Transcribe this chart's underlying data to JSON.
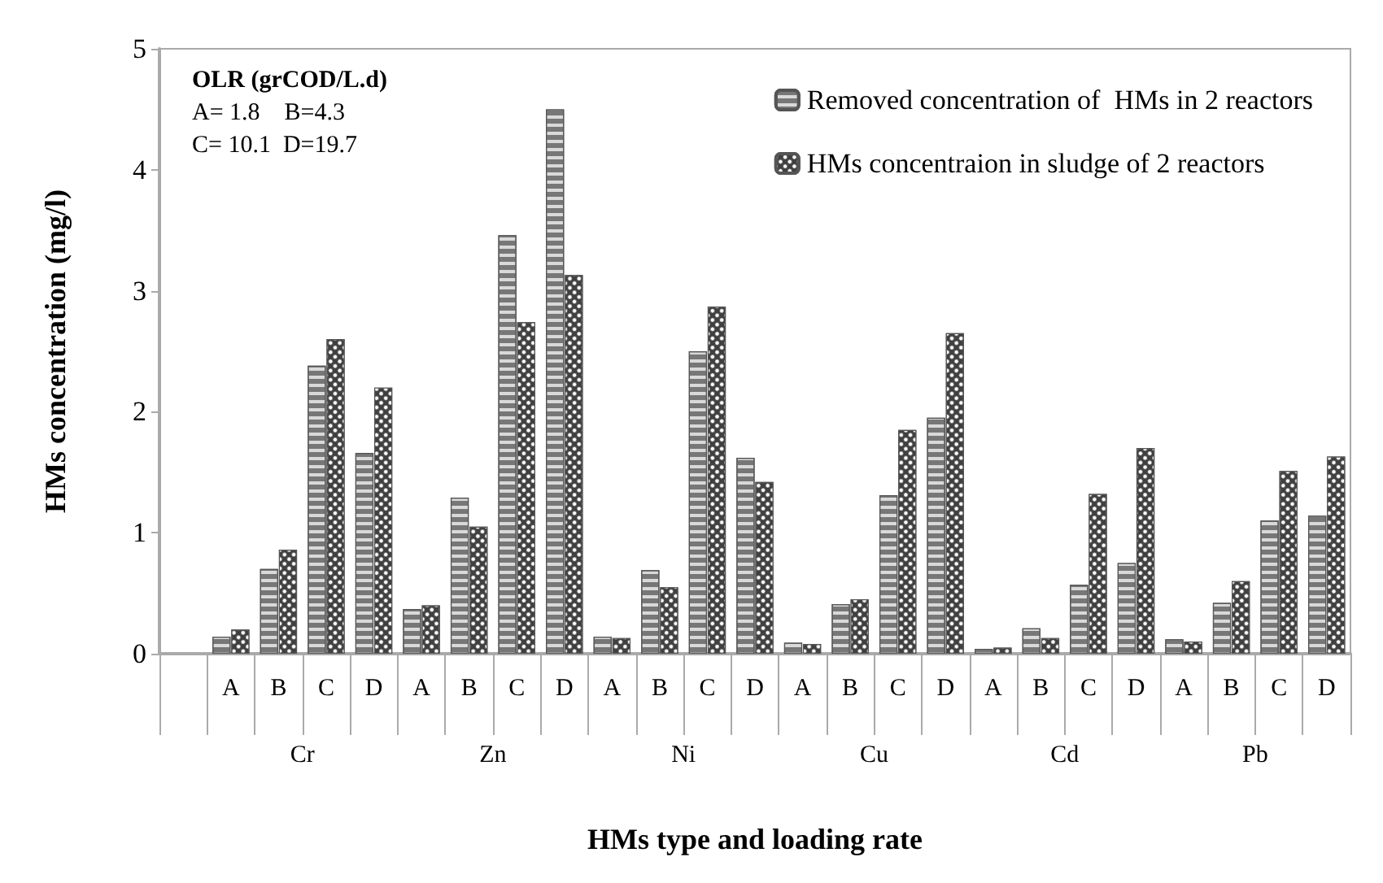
{
  "chart_data": {
    "type": "bar",
    "xlabel": "HMs type and loading rate",
    "ylabel": "HMs concentration (mg/l)",
    "categories": [
      null,
      "A",
      "B",
      "C",
      "D",
      "A",
      "B",
      "C",
      "D",
      "A",
      "B",
      "C",
      "D",
      "A",
      "B",
      "C",
      "D",
      "A",
      "B",
      "C",
      "D",
      "A",
      "B",
      "C",
      "D"
    ],
    "series": [
      {
        "name": "Removed concentration of  HMs in 2 reactors",
        "color": "#d9d9d9",
        "values": [
          null,
          0.14,
          0.7,
          2.38,
          1.66,
          0.37,
          1.29,
          3.46,
          4.5,
          0.14,
          0.69,
          2.5,
          1.62,
          0.09,
          0.41,
          1.31,
          1.95,
          0.04,
          0.21,
          0.57,
          0.75,
          0.12,
          0.42,
          1.1,
          1.14
        ]
      },
      {
        "name": "HMs concentraion in sludge of 2 reactors",
        "color": "#404040",
        "values": [
          null,
          0.2,
          0.86,
          2.6,
          2.2,
          0.4,
          1.05,
          2.74,
          3.13,
          0.13,
          0.55,
          2.87,
          1.42,
          0.08,
          0.45,
          1.85,
          2.65,
          0.05,
          0.13,
          1.32,
          1.7,
          0.1,
          0.6,
          1.51,
          1.63
        ]
      }
    ],
    "annotations": [
      "OLR (grCOD/L.d)",
      "A= 1.8    B=4.3",
      "C= 10.1  D=19.7",
      "Cr",
      "Zn",
      "Ni",
      "Cu",
      "Cd",
      "Pb"
    ],
    "ylim": [
      0,
      5
    ],
    "yticks": [
      0,
      1,
      2,
      3,
      4,
      5
    ],
    "grid": false,
    "legend": "top right"
  }
}
